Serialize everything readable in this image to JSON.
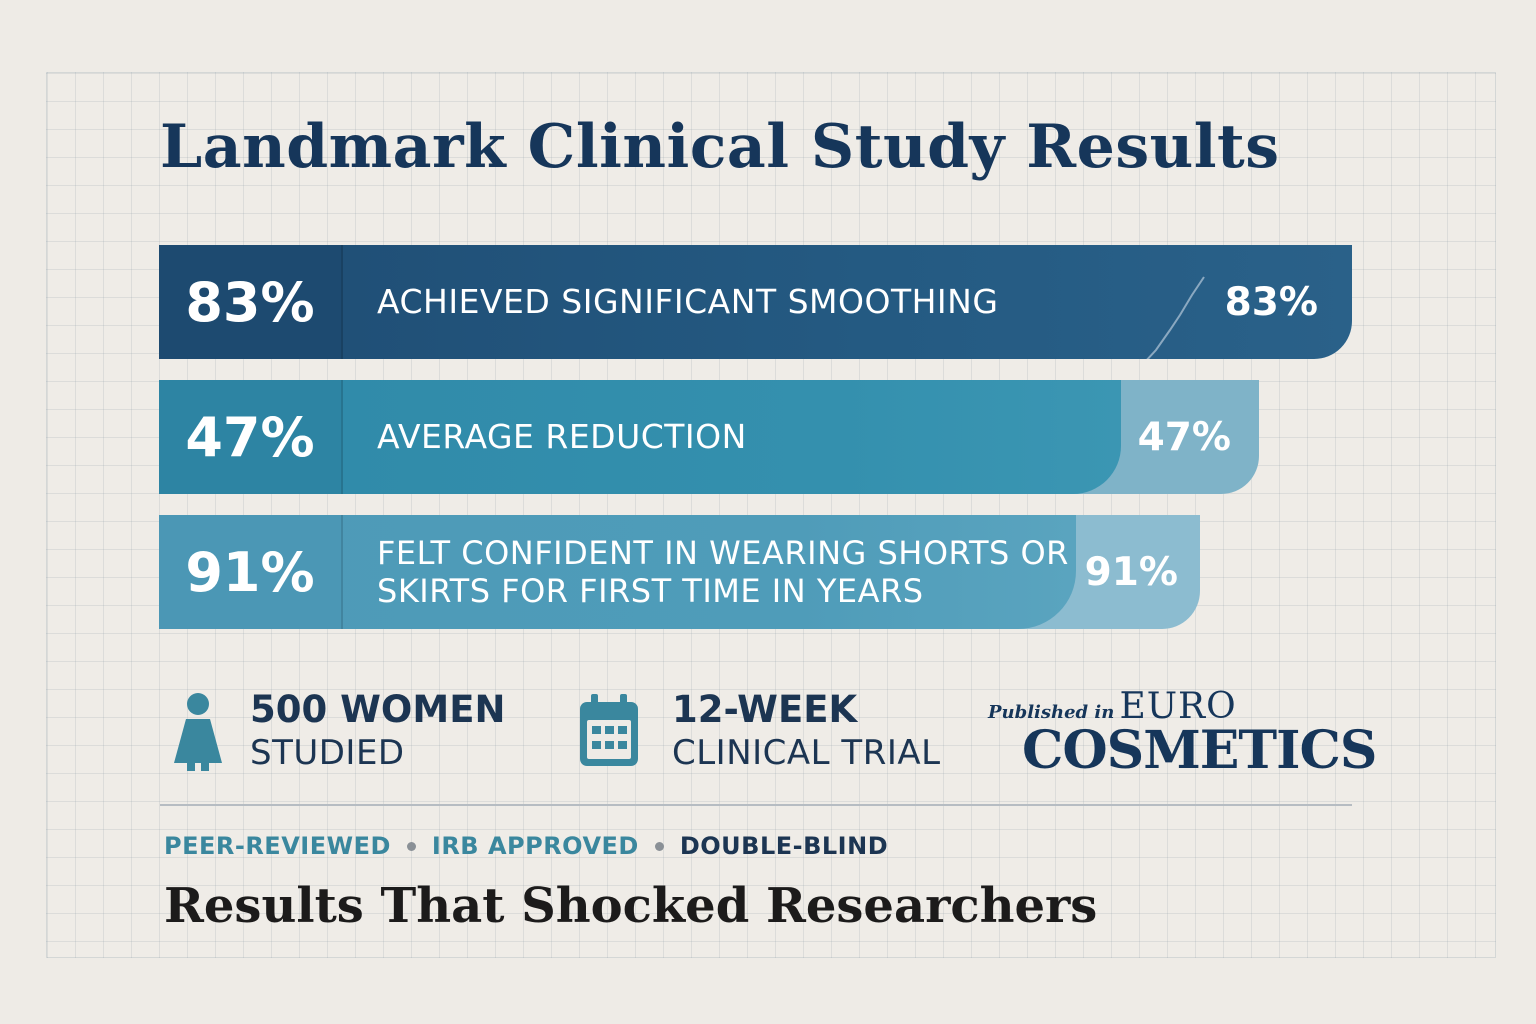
{
  "title": "Landmark Clinical Study Results",
  "colors": {
    "navy": "#1e4f76",
    "teal": "#3590ad",
    "teal_light": "#5aa6c0",
    "accent_teal": "#3a879e",
    "text_dark": "#16365a"
  },
  "bars": [
    {
      "value_percent": 83,
      "lead": "83%",
      "label": "ACHIEVED SIGNIFICANT SMOOTHING",
      "end": "83%"
    },
    {
      "value_percent": 47,
      "lead": "47%",
      "label": "AVERAGE REDUCTION",
      "end": "47%"
    },
    {
      "value_percent": 91,
      "lead": "91%",
      "label": "FELT CONFIDENT IN WEARING SHORTS OR SKIRTS FOR FIRST TIME IN YEARS",
      "end": "91%"
    }
  ],
  "stats": {
    "women": {
      "icon": "person-icon",
      "line1": "500 WOMEN",
      "line2": "STUDIED"
    },
    "trial": {
      "icon": "calendar-icon",
      "line1": "12-WEEK",
      "line2": "CLINICAL TRIAL"
    }
  },
  "publication": {
    "prefix": "Published in",
    "name_line1": "EURO",
    "name_line2": "COSMETICS"
  },
  "tags": [
    "PEER-REVIEWED",
    "IRB APPROVED",
    "DOUBLE-BLIND"
  ],
  "subtitle": "Results That Shocked Researchers"
}
